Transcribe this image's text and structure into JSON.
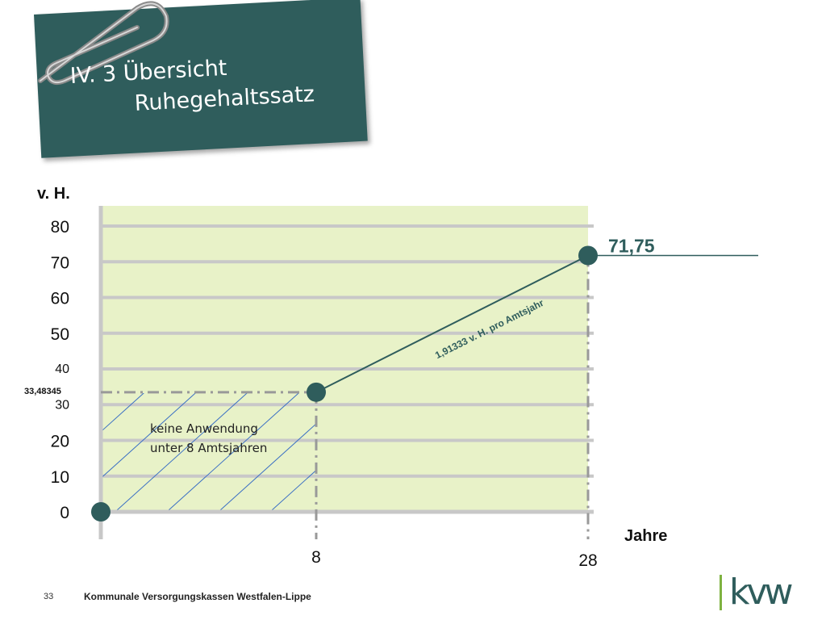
{
  "slide": {
    "title_line1": "IV. 3 Übersicht",
    "title_line2": "Ruhegehaltssatz",
    "page_number": "33",
    "organization": "Kommunale Versorgungskassen Westfalen-Lippe",
    "logo_text": "kvw"
  },
  "chart_data": {
    "type": "line",
    "ylabel": "v. H.",
    "xlabel": "Jahre",
    "y_ticks": [
      0,
      10,
      20,
      30,
      40,
      50,
      60,
      70,
      80
    ],
    "x_ticks": [
      8,
      28
    ],
    "ylim": [
      0,
      80
    ],
    "grid": true,
    "series": [
      {
        "x": [
          8,
          28
        ],
        "y": [
          33.48345,
          71.75
        ]
      }
    ],
    "start_point": {
      "x": 0,
      "y": 0
    },
    "annotations": {
      "y_start_label": "33,48345",
      "y_end_label": "71,75",
      "slope_label": "1,91333 v. H. pro Amtsjahr",
      "hatched_label_line1": "keine Anwendung",
      "hatched_label_line2": "unter 8 Amtsjahren"
    },
    "colors": {
      "plot_background": "#e8f2c8",
      "grid": "#c8c8c8",
      "line": "#2f5d5c",
      "marker": "#2f5d5c",
      "hatch": "#3a6fc4",
      "dashed": "#999999"
    }
  }
}
